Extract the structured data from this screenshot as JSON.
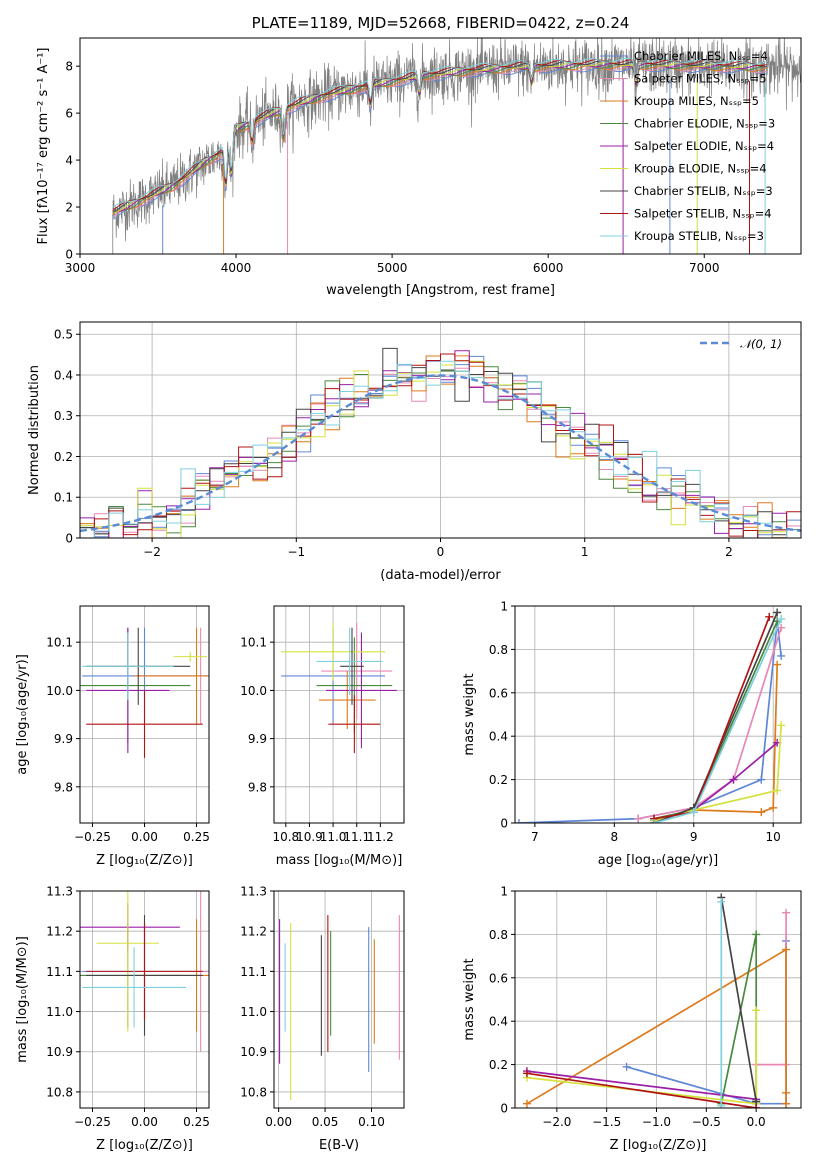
{
  "colors": [
    "#5f87d6",
    "#e987b6",
    "#dd7a1c",
    "#4a8a3e",
    "#9b1fa7",
    "#d5e03f",
    "#444444",
    "#b01313",
    "#7fd0df"
  ],
  "chart_data": [
    {
      "id": "spectrum",
      "type": "line",
      "title": "PLATE=1189, MJD=52668, FIBERID=0422, z=0.24",
      "xlabel": "wavelength [Angstrom, rest frame]",
      "ylabel": "Flux [fλ10⁻¹⁷ erg cm⁻² s⁻¹ A⁻¹]",
      "xlim": [
        3000,
        7620
      ],
      "ylim": [
        0,
        9.2
      ],
      "xticks": [
        3000,
        4000,
        5000,
        6000,
        7000
      ],
      "yticks": [
        0,
        2,
        4,
        6,
        8
      ],
      "legend_position": "top-right",
      "legend": [
        "Chabrier MILES, Nₛₛₚ=4",
        "Salpeter MILES, Nₛₛₚ=5",
        "Kroupa MILES, Nₛₛₚ=5",
        "Chabrier ELODIE, Nₛₛₚ=3",
        "Salpeter ELODIE, Nₛₛₚ=4",
        "Kroupa ELODIE, Nₛₛₚ=4",
        "Chabrier STELIB, Nₛₛₚ=3",
        "Salpeter STELIB, Nₛₛₚ=4",
        "Kroupa STELIB, Nₛₛₚ=3"
      ],
      "continuum": [
        [
          3210,
          1.75
        ],
        [
          3400,
          2.3
        ],
        [
          3600,
          2.9
        ],
        [
          3800,
          3.9
        ],
        [
          3950,
          4.5
        ],
        [
          4000,
          5.3
        ],
        [
          4200,
          5.9
        ],
        [
          4400,
          6.4
        ],
        [
          4600,
          6.8
        ],
        [
          4800,
          7.1
        ],
        [
          5000,
          7.35
        ],
        [
          5200,
          7.6
        ],
        [
          5500,
          7.8
        ],
        [
          5800,
          7.95
        ],
        [
          6000,
          8.0
        ],
        [
          6300,
          8.05
        ],
        [
          6600,
          8.05
        ],
        [
          7000,
          8.0
        ],
        [
          7400,
          7.95
        ],
        [
          7620,
          7.9
        ]
      ],
      "model_lambda_range": [
        3210,
        7400
      ]
    },
    {
      "id": "residual-histogram",
      "type": "line",
      "xlabel": "(data-model)/error",
      "ylabel": "Normed distribution",
      "xlim": [
        -2.5,
        2.5
      ],
      "ylim": [
        0,
        0.53
      ],
      "xticks": [
        -2,
        -1,
        0,
        1,
        2
      ],
      "yticks": [
        0.0,
        0.1,
        0.2,
        0.3,
        0.4,
        0.5
      ],
      "legend": [
        "𝒩(0, 1)"
      ],
      "legend_position": "top-right",
      "bin_width": 0.1
    },
    {
      "id": "age-vs-z",
      "type": "scatter",
      "xlabel": "Z [log₁₀(Z/Z⊙)]",
      "ylabel": "age  [log₁₀(age/yr)]",
      "xlim": [
        -0.31,
        0.31
      ],
      "ylim": [
        9.725,
        10.175
      ],
      "xticks": [
        -0.25,
        0.0,
        0.25
      ],
      "xtick_labels": [
        "−0.25",
        "0.00",
        "0.25"
      ],
      "yticks": [
        9.8,
        9.9,
        10.0,
        10.1
      ],
      "ytick_labels": [
        "9.8",
        "9.9",
        "10.0",
        "10.1"
      ],
      "points": [
        {
          "x": 0.0,
          "xerr": 0.3,
          "y": 10.03,
          "yerr": 0.1
        },
        {
          "x": 0.27,
          "xerr": 0.3,
          "y": 10.03,
          "yerr": 0.1
        },
        {
          "x": 0.25,
          "xerr": 0.3,
          "y": 10.03,
          "yerr": 0.1
        },
        {
          "x": -0.08,
          "xerr": 0.3,
          "y": 10.01,
          "yerr": 0.12
        },
        {
          "x": -0.08,
          "xerr": 0.2,
          "y": 10.0,
          "yerr": 0.13
        },
        {
          "x": 0.22,
          "xerr": 0.08,
          "y": 10.07,
          "yerr": 0.01
        },
        {
          "x": -0.03,
          "xerr": 0.25,
          "y": 10.05,
          "yerr": 0.08
        },
        {
          "x": 0.0,
          "xerr": 0.28,
          "y": 9.93,
          "yerr": 0.07
        },
        {
          "x": -0.08,
          "xerr": 0.22,
          "y": 10.05,
          "yerr": 0.07
        }
      ]
    },
    {
      "id": "age-vs-mass",
      "type": "scatter",
      "xlabel": "mass [log₁₀(M/M⊙)]",
      "ylabel": "",
      "xlim": [
        10.75,
        11.3
      ],
      "ylim": [
        9.725,
        10.175
      ],
      "xticks": [
        10.8,
        10.9,
        11.0,
        11.1,
        11.2
      ],
      "xtick_labels": [
        "10.8",
        "10.9",
        "11.0",
        "11.1",
        "11.2"
      ],
      "yticks": [
        9.8,
        9.9,
        10.0,
        10.1
      ],
      "ytick_labels": [
        "9.8",
        "9.9",
        "10.0",
        "10.1"
      ],
      "points": [
        {
          "x": 11.0,
          "xerr": 0.22,
          "y": 10.03,
          "yerr": 0.1
        },
        {
          "x": 11.1,
          "xerr": 0.15,
          "y": 10.04,
          "yerr": 0.1
        },
        {
          "x": 11.06,
          "xerr": 0.12,
          "y": 9.98,
          "yerr": 0.06
        },
        {
          "x": 11.09,
          "xerr": 0.16,
          "y": 10.01,
          "yerr": 0.1
        },
        {
          "x": 11.12,
          "xerr": 0.15,
          "y": 10.0,
          "yerr": 0.12
        },
        {
          "x": 11.0,
          "xerr": 0.22,
          "y": 10.08,
          "yerr": 0.06
        },
        {
          "x": 11.08,
          "xerr": 0.05,
          "y": 10.05,
          "yerr": 0.08
        },
        {
          "x": 11.09,
          "xerr": 0.11,
          "y": 9.93,
          "yerr": 0.06
        },
        {
          "x": 11.07,
          "xerr": 0.14,
          "y": 10.06,
          "yerr": 0.07
        }
      ]
    },
    {
      "id": "mass-weight-vs-age",
      "type": "line",
      "xlabel": "age  [log₁₀(age/yr)]",
      "ylabel": "mass weight",
      "xlim": [
        6.75,
        10.35
      ],
      "ylim": [
        0,
        1.0
      ],
      "xticks": [
        7,
        8,
        9,
        10
      ],
      "yticks": [
        0.0,
        0.2,
        0.4,
        0.6,
        0.8,
        1.0
      ],
      "series": [
        {
          "x": [
            6.8,
            8.3,
            9.0,
            9.85,
            10.05,
            10.1
          ],
          "y": [
            0.0,
            0.02,
            0.07,
            0.2,
            0.93,
            0.77
          ]
        },
        {
          "x": [
            8.3,
            9.0,
            9.5,
            10.1
          ],
          "y": [
            0.02,
            0.07,
            0.2,
            0.9
          ]
        },
        {
          "x": [
            8.5,
            9.0,
            9.85,
            10.0,
            10.05
          ],
          "y": [
            0.02,
            0.06,
            0.05,
            0.07,
            0.73
          ]
        },
        {
          "x": [
            8.5,
            9.0,
            10.05
          ],
          "y": [
            0.02,
            0.06,
            0.93
          ]
        },
        {
          "x": [
            8.5,
            9.0,
            9.5,
            10.05
          ],
          "y": [
            0.01,
            0.06,
            0.2,
            0.37
          ]
        },
        {
          "x": [
            8.5,
            9.0,
            10.05,
            10.1
          ],
          "y": [
            0.01,
            0.06,
            0.15,
            0.45
          ]
        },
        {
          "x": [
            8.5,
            9.0,
            10.05
          ],
          "y": [
            0.0,
            0.07,
            0.97
          ]
        },
        {
          "x": [
            8.5,
            9.0,
            9.95
          ],
          "y": [
            0.02,
            0.05,
            0.95
          ]
        },
        {
          "x": [
            8.5,
            9.0,
            10.1
          ],
          "y": [
            0.0,
            0.05,
            0.94
          ]
        }
      ]
    },
    {
      "id": "mass-vs-z",
      "type": "scatter",
      "xlabel": "Z [log₁₀(Z/Z⊙)]",
      "ylabel": "mass [log₁₀(M/M⊙)]",
      "xlim": [
        -0.31,
        0.31
      ],
      "ylim": [
        10.76,
        11.3
      ],
      "xticks": [
        -0.25,
        0.0,
        0.25
      ],
      "xtick_labels": [
        "−0.25",
        "0.00",
        "0.25"
      ],
      "yticks": [
        10.8,
        10.9,
        11.0,
        11.1,
        11.2,
        11.3
      ],
      "ytick_labels": [
        "10.8",
        "10.9",
        "11.0",
        "11.1",
        "11.2",
        "11.3"
      ],
      "points": [
        {
          "x": 0.0,
          "xerr": 0.3,
          "y": 11.1,
          "yerr": 0.12
        },
        {
          "x": 0.27,
          "xerr": 0.3,
          "y": 11.1,
          "yerr": 0.2
        },
        {
          "x": 0.25,
          "xerr": 0.3,
          "y": 11.09,
          "yerr": 0.14
        },
        {
          "x": -0.08,
          "xerr": 0.25,
          "y": 11.09,
          "yerr": 0.13
        },
        {
          "x": -0.08,
          "xerr": 0.25,
          "y": 11.21,
          "yerr": 0.06
        },
        {
          "x": -0.08,
          "xerr": 0.15,
          "y": 11.17,
          "yerr": 0.22
        },
        {
          "x": 0.0,
          "xerr": 0.28,
          "y": 11.09,
          "yerr": 0.15
        },
        {
          "x": 0.0,
          "xerr": 0.28,
          "y": 11.1,
          "yerr": 0.12
        },
        {
          "x": -0.05,
          "xerr": 0.25,
          "y": 11.06,
          "yerr": 0.1
        }
      ]
    },
    {
      "id": "mass-vs-ebv",
      "type": "scatter",
      "xlabel": "E(B-V)",
      "ylabel": "",
      "xlim": [
        -0.005,
        0.135
      ],
      "ylim": [
        10.76,
        11.3
      ],
      "xticks": [
        0.0,
        0.05,
        0.1
      ],
      "xtick_labels": [
        "0.00",
        "0.05",
        "0.10"
      ],
      "yticks": [
        10.8,
        10.9,
        11.0,
        11.1,
        11.2,
        11.3
      ],
      "ytick_labels": [
        "10.8",
        "10.9",
        "11.0",
        "11.1",
        "11.2",
        "11.3"
      ],
      "points": [
        {
          "x": 0.097,
          "y": 11.03,
          "yerr": 0.18
        },
        {
          "x": 0.13,
          "y": 11.06,
          "yerr": 0.18
        },
        {
          "x": 0.103,
          "y": 11.05,
          "yerr": 0.13
        },
        {
          "x": 0.056,
          "y": 11.07,
          "yerr": 0.13
        },
        {
          "x": 0.001,
          "y": 11.05,
          "yerr": 0.18
        },
        {
          "x": 0.013,
          "y": 11.0,
          "yerr": 0.22
        },
        {
          "x": 0.046,
          "y": 11.04,
          "yerr": 0.15
        },
        {
          "x": 0.053,
          "y": 11.07,
          "yerr": 0.17
        },
        {
          "x": 0.007,
          "y": 11.06,
          "yerr": 0.11
        }
      ]
    },
    {
      "id": "mass-weight-vs-z",
      "type": "line",
      "xlabel": "Z [log₁₀(Z/Z⊙)]",
      "ylabel": "mass weight",
      "xlim": [
        -2.42,
        0.45
      ],
      "ylim": [
        0,
        1.0
      ],
      "xticks": [
        -2.0,
        -1.5,
        -1.0,
        -0.5,
        0.0
      ],
      "xtick_labels": [
        "−2.0",
        "−1.5",
        "−1.0",
        "−0.5",
        "0.0"
      ],
      "yticks": [
        0.0,
        0.2,
        0.4,
        0.6,
        0.8,
        1.0
      ],
      "series": [
        {
          "x": [
            -1.3,
            0.0,
            0.3,
            0.3
          ],
          "y": [
            0.19,
            0.02,
            0.02,
            0.77
          ]
        },
        {
          "x": [
            0.0,
            0.0,
            0.3,
            0.3
          ],
          "y": [
            0.02,
            0.2,
            0.2,
            0.9
          ]
        },
        {
          "x": [
            -2.3,
            0.3,
            0.3,
            0.3
          ],
          "y": [
            0.02,
            0.73,
            0.02,
            0.07
          ]
        },
        {
          "x": [
            -0.35,
            0.0,
            0.0
          ],
          "y": [
            0.02,
            0.8,
            0.02
          ]
        },
        {
          "x": [
            -2.3,
            0.0,
            0.0
          ],
          "y": [
            0.17,
            0.04,
            0.0
          ]
        },
        {
          "x": [
            -2.3,
            0.0,
            0.0
          ],
          "y": [
            0.14,
            0.02,
            0.45
          ]
        },
        {
          "x": [
            -0.35,
            0.0,
            0.0
          ],
          "y": [
            0.97,
            0.03,
            0.03
          ]
        },
        {
          "x": [
            -2.3,
            0.0
          ],
          "y": [
            0.16,
            0.0
          ]
        },
        {
          "x": [
            -0.35,
            -0.35
          ],
          "y": [
            0.95,
            0.01
          ]
        }
      ]
    }
  ]
}
